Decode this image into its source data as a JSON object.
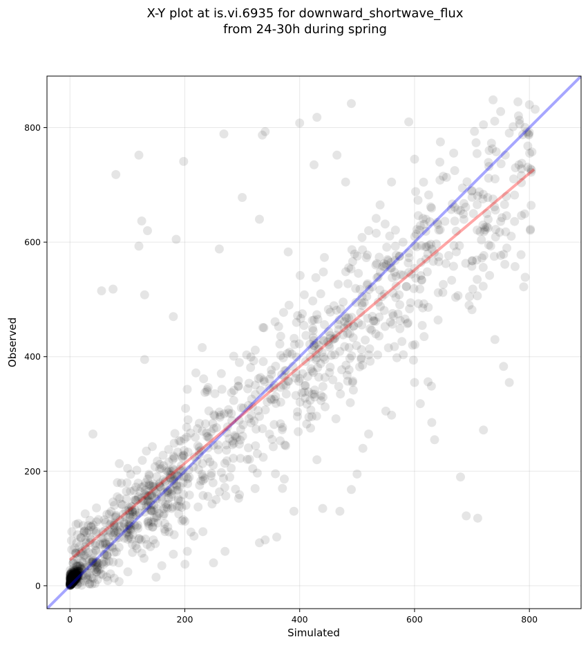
{
  "chart_data": {
    "type": "scatter",
    "title_line1": "X-Y plot at is.vi.6935 for downward_shortwave_flux",
    "title_line2": "from 24-30h during spring",
    "xlabel": "Simulated",
    "ylabel": "Observed",
    "xlim": [
      -40,
      890
    ],
    "ylim": [
      -40,
      890
    ],
    "xticks": [
      0,
      200,
      400,
      600,
      800
    ],
    "yticks": [
      0,
      200,
      400,
      600,
      800
    ],
    "grid": true,
    "point_color": "#000000",
    "point_alpha": 0.1,
    "one_to_one_line": {
      "color": "#0000ff",
      "alpha": 0.35
    },
    "fit_line": {
      "color": "#ff0000",
      "alpha": 0.35,
      "x": [
        0,
        808
      ],
      "y": [
        45,
        727
      ]
    },
    "series": [
      {
        "points_total": 1500,
        "highlighted_points": [
          [
            120,
            752
          ],
          [
            80,
            718
          ],
          [
            198,
            741
          ],
          [
            268,
            789
          ],
          [
            335,
            787
          ],
          [
            340,
            793
          ],
          [
            400,
            808
          ],
          [
            430,
            818
          ],
          [
            490,
            842
          ],
          [
            590,
            810
          ],
          [
            650,
            715
          ],
          [
            720,
            805
          ],
          [
            750,
            828
          ],
          [
            780,
            845
          ],
          [
            800,
            840
          ],
          [
            810,
            832
          ],
          [
            125,
            637
          ],
          [
            135,
            620
          ],
          [
            120,
            593
          ],
          [
            185,
            605
          ],
          [
            55,
            515
          ],
          [
            75,
            518
          ],
          [
            130,
            508
          ],
          [
            180,
            470
          ],
          [
            40,
            265
          ],
          [
            130,
            395
          ],
          [
            260,
            588
          ],
          [
            300,
            678
          ],
          [
            330,
            640
          ],
          [
            380,
            583
          ],
          [
            425,
            735
          ],
          [
            465,
            752
          ],
          [
            480,
            705
          ],
          [
            710,
            118
          ],
          [
            690,
            122
          ],
          [
            680,
            190
          ],
          [
            720,
            272
          ],
          [
            740,
            430
          ],
          [
            765,
            355
          ],
          [
            755,
            383
          ],
          [
            760,
            680
          ],
          [
            790,
            522
          ],
          [
            700,
            482
          ],
          [
            600,
            355
          ],
          [
            610,
            318
          ],
          [
            630,
            285
          ],
          [
            635,
            255
          ],
          [
            550,
            305
          ],
          [
            560,
            298
          ],
          [
            520,
            265
          ],
          [
            510,
            240
          ],
          [
            490,
            168
          ],
          [
            470,
            130
          ],
          [
            440,
            135
          ],
          [
            500,
            195
          ],
          [
            430,
            220
          ],
          [
            390,
            130
          ],
          [
            370,
            170
          ],
          [
            340,
            80
          ],
          [
            330,
            75
          ],
          [
            360,
            85
          ],
          [
            250,
            40
          ],
          [
            270,
            60
          ],
          [
            180,
            55
          ],
          [
            150,
            15
          ],
          [
            160,
            35
          ],
          [
            560,
            555
          ],
          [
            580,
            600
          ],
          [
            620,
            640
          ],
          [
            670,
            725
          ],
          [
            680,
            655
          ],
          [
            700,
            690
          ],
          [
            730,
            760
          ],
          [
            645,
            775
          ],
          [
            600,
            745
          ],
          [
            560,
            705
          ],
          [
            540,
            665
          ],
          [
            520,
            620
          ]
        ]
      }
    ]
  }
}
